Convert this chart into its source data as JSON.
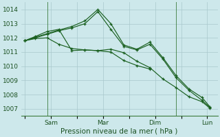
{
  "background_color": "#cde8eb",
  "grid_color": "#a8c8cc",
  "line_color": "#1a6020",
  "xlabel": "Pression niveau de la mer ( hPa )",
  "ylim": [
    1006.5,
    1014.5
  ],
  "yticks": [
    1007,
    1008,
    1009,
    1010,
    1011,
    1012,
    1013,
    1014
  ],
  "xtick_labels": [
    "",
    "Sam",
    "",
    "Mar",
    "",
    "Dim",
    "",
    "Lun"
  ],
  "xtick_positions": [
    0,
    1,
    2,
    3,
    4,
    5,
    6,
    7
  ],
  "xlim": [
    -0.15,
    7.4
  ],
  "series": [
    {
      "x": [
        0.0,
        0.4,
        0.85,
        1.3,
        1.8,
        2.3,
        2.8,
        3.3,
        3.8,
        4.3,
        4.8,
        5.3,
        5.8,
        6.3,
        6.8,
        7.1
      ],
      "y": [
        1011.8,
        1011.95,
        1012.0,
        1011.55,
        1011.25,
        1011.15,
        1011.1,
        1011.2,
        1010.95,
        1010.35,
        1009.9,
        1009.1,
        1008.5,
        1007.85,
        1007.5,
        1007.05
      ]
    },
    {
      "x": [
        0.0,
        0.4,
        0.85,
        1.3,
        1.8,
        2.3,
        2.8,
        3.3,
        3.8,
        4.3,
        4.8,
        5.3,
        5.8,
        6.3,
        6.8,
        7.1
      ],
      "y": [
        1011.8,
        1012.0,
        1012.25,
        1012.5,
        1012.7,
        1013.0,
        1013.85,
        1012.6,
        1011.4,
        1011.15,
        1011.55,
        1010.5,
        1009.2,
        1008.3,
        1007.6,
        1007.1
      ]
    },
    {
      "x": [
        0.0,
        0.4,
        0.85,
        1.3,
        1.8,
        2.3,
        2.8,
        3.3,
        3.8,
        4.3,
        4.8,
        5.3,
        5.8,
        6.3,
        6.8,
        7.1
      ],
      "y": [
        1011.8,
        1012.05,
        1012.3,
        1012.55,
        1012.8,
        1013.2,
        1014.0,
        1013.0,
        1011.5,
        1011.2,
        1011.7,
        1010.6,
        1009.35,
        1008.4,
        1007.8,
        1007.15
      ]
    },
    {
      "x": [
        0.0,
        0.4,
        0.85,
        1.3,
        1.8,
        2.3,
        2.8,
        3.3,
        3.8,
        4.3,
        4.8
      ],
      "y": [
        1011.8,
        1012.1,
        1012.45,
        1012.6,
        1011.1,
        1011.15,
        1011.1,
        1011.0,
        1010.4,
        1010.05,
        1009.8
      ]
    }
  ],
  "vline_positions": [
    0.85,
    5.8
  ],
  "vline_color": "#3a7a3a",
  "tick_color": "#1a5020",
  "label_fontsize": 6.5,
  "xlabel_fontsize": 7.5
}
